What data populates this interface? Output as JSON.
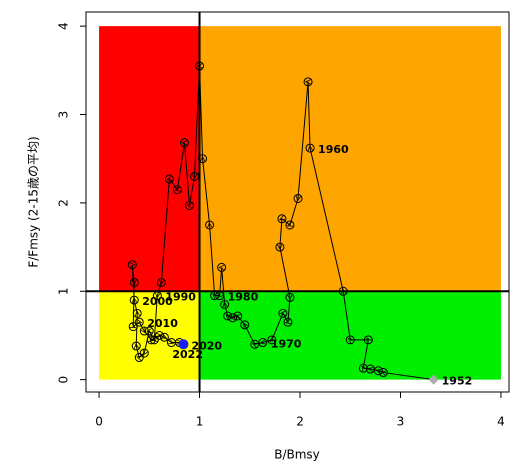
{
  "chart_data": {
    "type": "kobe",
    "xlabel": "B/Bmsy",
    "ylabel": "F/Fmsy (2-15歳の平均)",
    "xlim": [
      -0.13,
      4.08
    ],
    "ylim": [
      -0.14,
      4.16
    ],
    "xticks": [
      0,
      1,
      2,
      3,
      4
    ],
    "yticks": [
      0,
      1,
      2,
      3,
      4
    ],
    "ref_x": 1,
    "ref_y": 1,
    "zones": [
      {
        "color": "#ff0000",
        "x": [
          0,
          1
        ],
        "y": [
          1,
          4
        ]
      },
      {
        "color": "#ffa500",
        "x": [
          1,
          4
        ],
        "y": [
          1,
          4
        ]
      },
      {
        "color": "#ffff00",
        "x": [
          0,
          1
        ],
        "y": [
          0,
          1
        ]
      },
      {
        "color": "#00ee00",
        "x": [
          1,
          4
        ],
        "y": [
          0,
          1
        ]
      }
    ],
    "series": [
      {
        "color": "#000000",
        "start_color": "#aaaaaa",
        "end_color": "#1a1aff",
        "x": [
          3.33,
          2.83,
          2.78,
          2.7,
          2.63,
          2.68,
          2.5,
          2.43,
          2.1,
          2.08,
          1.98,
          1.9,
          1.82,
          1.8,
          1.9,
          1.88,
          1.83,
          1.72,
          1.63,
          1.55,
          1.45,
          1.38,
          1.33,
          1.28,
          1.25,
          1.22,
          1.2,
          1.15,
          1.1,
          1.03,
          1.0,
          0.95,
          0.9,
          0.85,
          0.78,
          0.7,
          0.62,
          0.58,
          0.55,
          0.5,
          0.45,
          0.4,
          0.37,
          0.38,
          0.35,
          0.33,
          0.35,
          0.34,
          0.4,
          0.45,
          0.52,
          0.6,
          0.65,
          0.72,
          0.8,
          0.84
        ],
        "values": [
          0,
          0.08,
          0.1,
          0.12,
          0.13,
          0.45,
          0.45,
          1.0,
          2.62,
          3.37,
          2.05,
          1.75,
          1.82,
          1.5,
          0.93,
          0.65,
          0.75,
          0.45,
          0.42,
          0.4,
          0.62,
          0.72,
          0.7,
          0.72,
          0.85,
          1.27,
          0.95,
          0.95,
          1.75,
          2.5,
          3.55,
          2.3,
          1.97,
          2.68,
          2.15,
          2.27,
          1.1,
          0.95,
          0.45,
          0.55,
          0.3,
          0.25,
          0.38,
          0.75,
          0.9,
          1.3,
          1.1,
          0.6,
          0.65,
          0.55,
          0.45,
          0.5,
          0.48,
          0.42,
          0.42,
          0.4
        ]
      }
    ],
    "annotations": [
      {
        "label": "1952",
        "x": 3.33,
        "y": 0
      },
      {
        "label": "1960",
        "x": 2.1,
        "y": 2.62
      },
      {
        "label": "1970",
        "x": 1.63,
        "y": 0.42
      },
      {
        "label": "1980",
        "x": 1.2,
        "y": 0.95
      },
      {
        "label": "1990",
        "x": 0.58,
        "y": 0.95
      },
      {
        "label": "2000",
        "x": 0.35,
        "y": 0.9
      },
      {
        "label": "2010",
        "x": 0.4,
        "y": 0.65
      },
      {
        "label": "2020",
        "x": 0.84,
        "y": 0.4
      },
      {
        "label": "2022",
        "x": 0.65,
        "y": 0.3
      }
    ]
  }
}
